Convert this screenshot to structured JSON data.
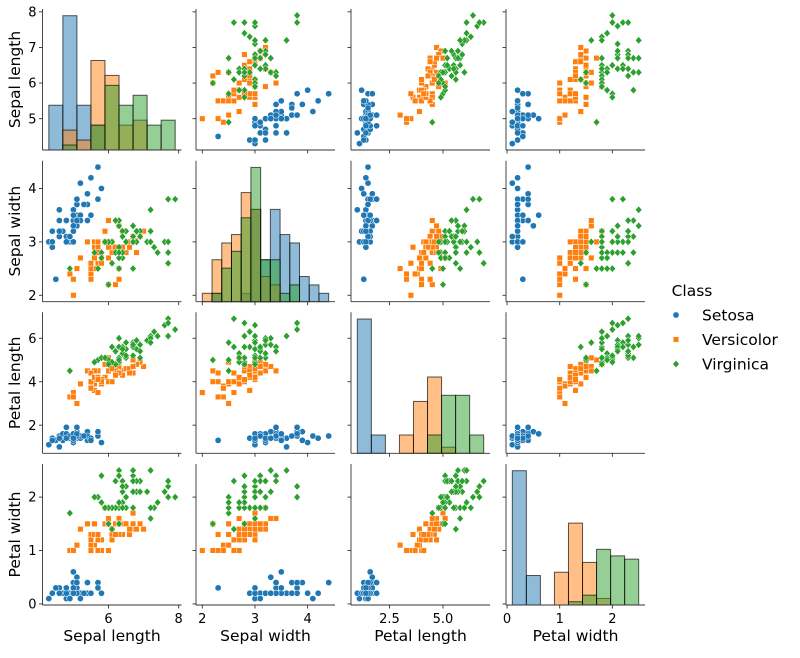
{
  "chart_data": {
    "type": "scatter",
    "title": "",
    "variables": [
      "Sepal length",
      "Sepal width",
      "Petal length",
      "Petal width"
    ],
    "diagonal": "histogram (count, shared bins, per class)",
    "ticks": [
      {
        "values": [
          5,
          6,
          7,
          8
        ],
        "labels": [
          "5",
          "6",
          "7",
          "8"
        ]
      },
      {
        "values": [
          2,
          3,
          4
        ],
        "labels": [
          "2",
          "3",
          "4"
        ]
      },
      {
        "values": [
          2,
          4,
          6
        ],
        "labels": [
          "2",
          "4",
          "6"
        ]
      },
      {
        "values": [
          0,
          1,
          2
        ],
        "labels": [
          "0",
          "1",
          "2"
        ]
      }
    ],
    "x_ticks": [
      {
        "values": [
          6,
          8
        ],
        "labels": [
          "6",
          "8"
        ]
      },
      {
        "values": [
          2,
          3,
          4
        ],
        "labels": [
          "2",
          "3",
          "4"
        ]
      },
      {
        "values": [
          2.5,
          5.0
        ],
        "labels": [
          "2.5",
          "5.0"
        ]
      },
      {
        "values": [
          0,
          1,
          2
        ],
        "labels": [
          "0",
          "1",
          "2"
        ]
      }
    ],
    "legend": {
      "title": "Class",
      "placement": "right",
      "entries": [
        "Setosa",
        "Versicolor",
        "Virginica"
      ]
    },
    "series": [
      {
        "name": "Setosa",
        "color": "#1f77b4",
        "marker": "circle",
        "rows": [
          [
            5.1,
            3.5,
            1.4,
            0.2
          ],
          [
            4.9,
            3.0,
            1.4,
            0.2
          ],
          [
            4.7,
            3.2,
            1.3,
            0.2
          ],
          [
            4.6,
            3.1,
            1.5,
            0.2
          ],
          [
            5.0,
            3.6,
            1.4,
            0.2
          ],
          [
            5.4,
            3.9,
            1.7,
            0.4
          ],
          [
            4.6,
            3.4,
            1.4,
            0.3
          ],
          [
            5.0,
            3.4,
            1.5,
            0.2
          ],
          [
            4.4,
            2.9,
            1.4,
            0.2
          ],
          [
            4.9,
            3.1,
            1.5,
            0.1
          ],
          [
            5.4,
            3.7,
            1.5,
            0.2
          ],
          [
            4.8,
            3.4,
            1.6,
            0.2
          ],
          [
            4.8,
            3.0,
            1.4,
            0.1
          ],
          [
            4.3,
            3.0,
            1.1,
            0.1
          ],
          [
            5.8,
            4.0,
            1.2,
            0.2
          ],
          [
            5.7,
            4.4,
            1.5,
            0.4
          ],
          [
            5.4,
            3.9,
            1.3,
            0.4
          ],
          [
            5.1,
            3.5,
            1.4,
            0.3
          ],
          [
            5.7,
            3.8,
            1.7,
            0.3
          ],
          [
            5.1,
            3.8,
            1.5,
            0.3
          ],
          [
            5.4,
            3.4,
            1.7,
            0.2
          ],
          [
            5.1,
            3.7,
            1.5,
            0.4
          ],
          [
            4.6,
            3.6,
            1.0,
            0.2
          ],
          [
            5.1,
            3.3,
            1.7,
            0.5
          ],
          [
            4.8,
            3.4,
            1.9,
            0.2
          ],
          [
            5.0,
            3.0,
            1.6,
            0.2
          ],
          [
            5.0,
            3.4,
            1.6,
            0.4
          ],
          [
            5.2,
            3.5,
            1.5,
            0.2
          ],
          [
            5.2,
            3.4,
            1.4,
            0.2
          ],
          [
            4.7,
            3.2,
            1.6,
            0.2
          ],
          [
            4.8,
            3.1,
            1.6,
            0.2
          ],
          [
            5.4,
            3.4,
            1.5,
            0.4
          ],
          [
            5.2,
            4.1,
            1.5,
            0.1
          ],
          [
            5.5,
            4.2,
            1.4,
            0.2
          ],
          [
            4.9,
            3.1,
            1.5,
            0.1
          ],
          [
            5.0,
            3.2,
            1.2,
            0.2
          ],
          [
            5.5,
            3.5,
            1.3,
            0.2
          ],
          [
            4.9,
            3.1,
            1.5,
            0.1
          ],
          [
            4.4,
            3.0,
            1.3,
            0.2
          ],
          [
            5.1,
            3.4,
            1.5,
            0.2
          ],
          [
            5.0,
            3.5,
            1.3,
            0.3
          ],
          [
            4.5,
            2.3,
            1.3,
            0.3
          ],
          [
            4.4,
            3.2,
            1.3,
            0.2
          ],
          [
            5.0,
            3.5,
            1.6,
            0.6
          ],
          [
            5.1,
            3.8,
            1.9,
            0.4
          ],
          [
            4.8,
            3.0,
            1.4,
            0.3
          ],
          [
            5.1,
            3.8,
            1.6,
            0.2
          ],
          [
            4.6,
            3.2,
            1.4,
            0.2
          ],
          [
            5.3,
            3.7,
            1.5,
            0.2
          ],
          [
            5.0,
            3.3,
            1.4,
            0.2
          ]
        ]
      },
      {
        "name": "Versicolor",
        "color": "#ff7f0e",
        "marker": "square",
        "rows": [
          [
            7.0,
            3.2,
            4.7,
            1.4
          ],
          [
            6.4,
            3.2,
            4.5,
            1.5
          ],
          [
            6.9,
            3.1,
            4.9,
            1.5
          ],
          [
            5.5,
            2.3,
            4.0,
            1.3
          ],
          [
            6.5,
            2.8,
            4.6,
            1.5
          ],
          [
            5.7,
            2.8,
            4.5,
            1.3
          ],
          [
            6.3,
            3.3,
            4.7,
            1.6
          ],
          [
            4.9,
            2.4,
            3.3,
            1.0
          ],
          [
            6.6,
            2.9,
            4.6,
            1.3
          ],
          [
            5.2,
            2.7,
            3.9,
            1.4
          ],
          [
            5.0,
            2.0,
            3.5,
            1.0
          ],
          [
            5.9,
            3.0,
            4.2,
            1.5
          ],
          [
            6.0,
            2.2,
            4.0,
            1.0
          ],
          [
            6.1,
            2.9,
            4.7,
            1.4
          ],
          [
            5.6,
            2.9,
            3.6,
            1.3
          ],
          [
            6.7,
            3.1,
            4.4,
            1.4
          ],
          [
            5.6,
            3.0,
            4.5,
            1.5
          ],
          [
            5.8,
            2.7,
            4.1,
            1.0
          ],
          [
            6.2,
            2.2,
            4.5,
            1.5
          ],
          [
            5.6,
            2.5,
            3.9,
            1.1
          ],
          [
            5.9,
            3.2,
            4.8,
            1.8
          ],
          [
            6.1,
            2.8,
            4.0,
            1.3
          ],
          [
            6.3,
            2.5,
            4.9,
            1.5
          ],
          [
            6.1,
            2.8,
            4.7,
            1.2
          ],
          [
            6.4,
            2.9,
            4.3,
            1.3
          ],
          [
            6.6,
            3.0,
            4.4,
            1.4
          ],
          [
            6.8,
            2.8,
            4.8,
            1.4
          ],
          [
            6.7,
            3.0,
            5.0,
            1.7
          ],
          [
            6.0,
            2.9,
            4.5,
            1.5
          ],
          [
            5.7,
            2.6,
            3.5,
            1.0
          ],
          [
            5.5,
            2.4,
            3.8,
            1.1
          ],
          [
            5.5,
            2.4,
            3.7,
            1.0
          ],
          [
            5.8,
            2.7,
            3.9,
            1.2
          ],
          [
            6.0,
            2.7,
            5.1,
            1.6
          ],
          [
            5.4,
            3.0,
            4.5,
            1.5
          ],
          [
            6.0,
            3.4,
            4.5,
            1.6
          ],
          [
            6.7,
            3.1,
            4.7,
            1.5
          ],
          [
            6.3,
            2.3,
            4.4,
            1.3
          ],
          [
            5.6,
            3.0,
            4.1,
            1.3
          ],
          [
            5.5,
            2.5,
            4.0,
            1.3
          ],
          [
            5.5,
            2.6,
            4.4,
            1.2
          ],
          [
            6.1,
            3.0,
            4.6,
            1.4
          ],
          [
            5.8,
            2.6,
            4.0,
            1.2
          ],
          [
            5.0,
            2.3,
            3.3,
            1.0
          ],
          [
            5.6,
            2.7,
            4.2,
            1.3
          ],
          [
            5.7,
            3.0,
            4.2,
            1.2
          ],
          [
            5.7,
            2.9,
            4.2,
            1.3
          ],
          [
            6.2,
            2.9,
            4.3,
            1.3
          ],
          [
            5.1,
            2.5,
            3.0,
            1.1
          ],
          [
            5.7,
            2.8,
            4.1,
            1.3
          ]
        ]
      },
      {
        "name": "Virginica",
        "color": "#2ca02c",
        "marker": "diamond",
        "rows": [
          [
            6.3,
            3.3,
            6.0,
            2.5
          ],
          [
            5.8,
            2.7,
            5.1,
            1.9
          ],
          [
            7.1,
            3.0,
            5.9,
            2.1
          ],
          [
            6.3,
            2.9,
            5.6,
            1.8
          ],
          [
            6.5,
            3.0,
            5.8,
            2.2
          ],
          [
            7.6,
            3.0,
            6.6,
            2.1
          ],
          [
            4.9,
            2.5,
            4.5,
            1.7
          ],
          [
            7.3,
            2.9,
            6.3,
            1.8
          ],
          [
            6.7,
            2.5,
            5.8,
            1.8
          ],
          [
            7.2,
            3.6,
            6.1,
            2.5
          ],
          [
            6.5,
            3.2,
            5.1,
            2.0
          ],
          [
            6.4,
            2.7,
            5.3,
            1.9
          ],
          [
            6.8,
            3.0,
            5.5,
            2.1
          ],
          [
            5.7,
            2.5,
            5.0,
            2.0
          ],
          [
            5.8,
            2.8,
            5.1,
            2.4
          ],
          [
            6.4,
            3.2,
            5.3,
            2.3
          ],
          [
            6.5,
            3.0,
            5.5,
            1.8
          ],
          [
            7.7,
            3.8,
            6.7,
            2.2
          ],
          [
            7.7,
            2.6,
            6.9,
            2.3
          ],
          [
            6.0,
            2.2,
            5.0,
            1.5
          ],
          [
            6.9,
            3.2,
            5.7,
            2.3
          ],
          [
            5.6,
            2.8,
            4.9,
            2.0
          ],
          [
            7.7,
            2.8,
            6.7,
            2.0
          ],
          [
            6.3,
            2.7,
            4.9,
            1.8
          ],
          [
            6.7,
            3.3,
            5.7,
            2.1
          ],
          [
            7.2,
            3.2,
            6.0,
            1.8
          ],
          [
            6.2,
            2.8,
            4.8,
            1.8
          ],
          [
            6.1,
            3.0,
            4.9,
            1.8
          ],
          [
            6.4,
            2.8,
            5.6,
            2.1
          ],
          [
            7.2,
            3.0,
            5.8,
            1.6
          ],
          [
            7.4,
            2.8,
            6.1,
            1.9
          ],
          [
            7.9,
            3.8,
            6.4,
            2.0
          ],
          [
            6.4,
            2.8,
            5.6,
            2.2
          ],
          [
            6.3,
            2.8,
            5.1,
            1.5
          ],
          [
            6.1,
            2.6,
            5.6,
            1.4
          ],
          [
            7.7,
            3.0,
            6.1,
            2.3
          ],
          [
            6.3,
            3.4,
            5.6,
            2.4
          ],
          [
            6.4,
            3.1,
            5.5,
            1.8
          ],
          [
            6.0,
            3.0,
            4.8,
            1.8
          ],
          [
            6.9,
            3.1,
            5.4,
            2.1
          ],
          [
            6.7,
            3.1,
            5.6,
            2.4
          ],
          [
            6.9,
            3.1,
            5.1,
            2.3
          ],
          [
            5.8,
            2.7,
            5.1,
            1.9
          ],
          [
            6.8,
            3.2,
            5.9,
            2.3
          ],
          [
            6.7,
            3.3,
            5.7,
            2.5
          ],
          [
            6.7,
            3.0,
            5.2,
            2.3
          ],
          [
            6.3,
            2.5,
            5.0,
            1.9
          ],
          [
            6.5,
            3.0,
            5.2,
            2.0
          ],
          [
            6.2,
            3.4,
            5.4,
            2.3
          ],
          [
            5.9,
            3.0,
            5.1,
            1.8
          ]
        ]
      }
    ]
  }
}
